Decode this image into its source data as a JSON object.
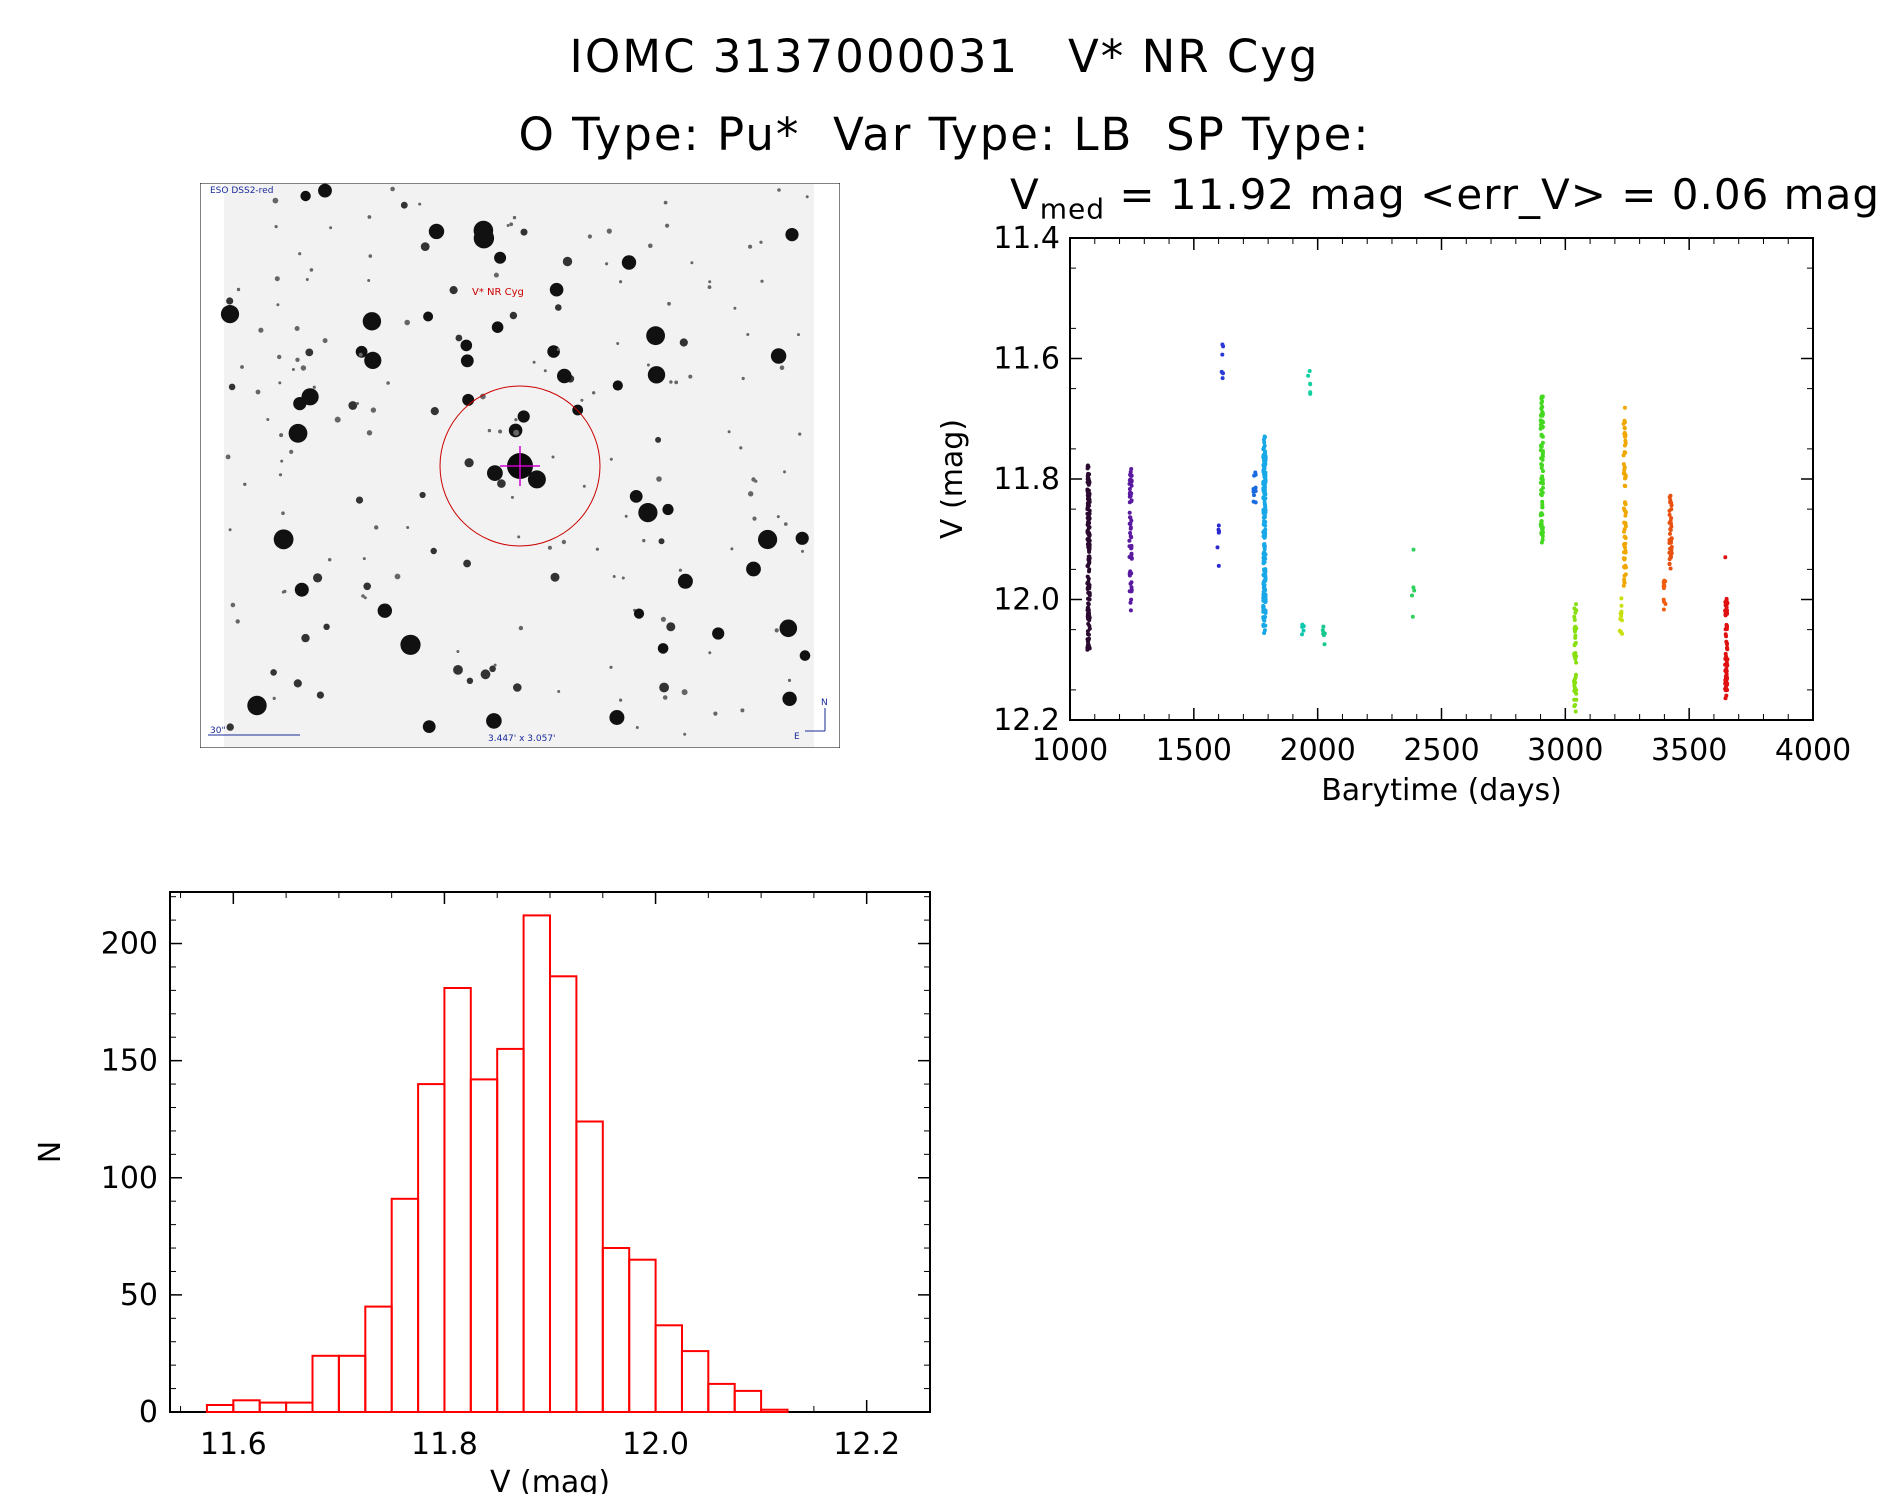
{
  "header": {
    "line1": "IOMC 3137000031   V* NR Cyg",
    "line2": "O Type: Pu*  Var Type: LB  SP Type:",
    "stats_prefix": "V",
    "stats_sub": "med",
    "stats_rest": " = 11.92 mag <err_V> = 0.06 mag"
  },
  "image_panel": {
    "survey_label": "ESO DSS2-red",
    "target_label": "V* NR Cyg",
    "scale_label": "30\"",
    "fov_label": "3.447' x 3.057'",
    "north_label": "N",
    "east_label": "E",
    "circle_color": "#cc0000",
    "crosshair_color": "#cc00cc"
  },
  "chart_data": [
    {
      "type": "scatter",
      "xlabel": "Barytime (days)",
      "ylabel": "V (mag)",
      "xlim": [
        1000,
        4000
      ],
      "ylim": [
        12.2,
        11.4
      ],
      "x_ticks": [
        "1000",
        "1500",
        "2000",
        "2500",
        "3000",
        "3500",
        "4000"
      ],
      "y_ticks": [
        "11.4",
        "11.6",
        "11.8",
        "12.0",
        "12.2"
      ],
      "groups": [
        {
          "x": 1075,
          "y_min": 11.77,
          "y_max": 12.09,
          "n": 160,
          "color": "#2a0a2e"
        },
        {
          "x": 1245,
          "y_min": 11.78,
          "y_max": 12.02,
          "n": 60,
          "color": "#5a1aa0"
        },
        {
          "x": 1600,
          "y_min": 11.86,
          "y_max": 11.95,
          "n": 6,
          "color": "#2a2ad0"
        },
        {
          "x": 1615,
          "y_min": 11.57,
          "y_max": 11.65,
          "n": 6,
          "color": "#2a3ad8"
        },
        {
          "x": 1745,
          "y_min": 11.76,
          "y_max": 11.84,
          "n": 12,
          "color": "#1a6ae0"
        },
        {
          "x": 1785,
          "y_min": 11.72,
          "y_max": 12.06,
          "n": 170,
          "color": "#18a8e8"
        },
        {
          "x": 1940,
          "y_min": 12.04,
          "y_max": 12.06,
          "n": 5,
          "color": "#10c8b0"
        },
        {
          "x": 1965,
          "y_min": 11.61,
          "y_max": 11.67,
          "n": 6,
          "color": "#10d0a0"
        },
        {
          "x": 2025,
          "y_min": 12.02,
          "y_max": 12.08,
          "n": 6,
          "color": "#18c890"
        },
        {
          "x": 2385,
          "y_min": 11.91,
          "y_max": 12.03,
          "n": 5,
          "color": "#30d060"
        },
        {
          "x": 2905,
          "y_min": 11.66,
          "y_max": 11.91,
          "n": 90,
          "color": "#44d820"
        },
        {
          "x": 3040,
          "y_min": 12.0,
          "y_max": 12.19,
          "n": 45,
          "color": "#88e010"
        },
        {
          "x": 3225,
          "y_min": 11.98,
          "y_max": 12.06,
          "n": 12,
          "color": "#c8e010"
        },
        {
          "x": 3240,
          "y_min": 11.67,
          "y_max": 11.98,
          "n": 70,
          "color": "#f0a800"
        },
        {
          "x": 3400,
          "y_min": 11.96,
          "y_max": 12.02,
          "n": 12,
          "color": "#f06010"
        },
        {
          "x": 3425,
          "y_min": 11.82,
          "y_max": 11.95,
          "n": 40,
          "color": "#e85010"
        },
        {
          "x": 3650,
          "y_min": 11.99,
          "y_max": 12.17,
          "n": 70,
          "color": "#e01010"
        },
        {
          "x": 3650,
          "y_min": 11.93,
          "y_max": 11.93,
          "n": 1,
          "color": "#e01010"
        }
      ]
    },
    {
      "type": "bar",
      "xlabel": "V (mag)",
      "ylabel": "N",
      "xlim": [
        1e-09,
        0
      ],
      "x_range": [
        11.54,
        12.26
      ],
      "ylim": [
        0,
        222
      ],
      "x_ticks": [
        "11.6",
        "11.8",
        "12.0",
        "12.2"
      ],
      "y_ticks": [
        "0",
        "50",
        "100",
        "150",
        "200"
      ],
      "bin_start": 11.575,
      "bin_width": 0.025,
      "values": [
        3,
        5,
        4,
        4,
        24,
        24,
        45,
        91,
        140,
        181,
        142,
        155,
        212,
        186,
        124,
        70,
        65,
        37,
        26,
        12,
        9,
        1
      ],
      "bar_color": "#ff0000"
    }
  ]
}
